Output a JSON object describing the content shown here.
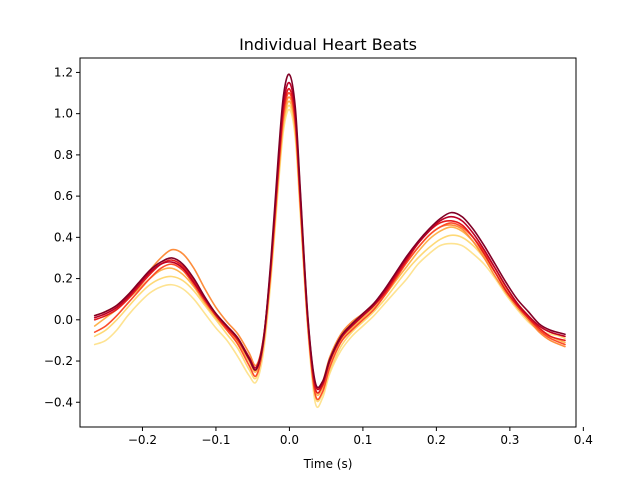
{
  "chart_data": {
    "type": "line",
    "title": "Individual Heart Beats",
    "xlabel": "Time (s)",
    "ylabel": "",
    "xlim": [
      -0.285,
      0.39
    ],
    "ylim": [
      -0.52,
      1.27
    ],
    "grid": false,
    "legend": "none",
    "x_ticks": [
      -0.2,
      -0.1,
      0.0,
      0.1,
      0.2,
      0.3,
      0.4
    ],
    "x_tick_labels": [
      "−0.2",
      "−0.1",
      "0.0",
      "0.1",
      "0.2",
      "0.3",
      "0.4"
    ],
    "y_ticks": [
      -0.4,
      -0.2,
      0.0,
      0.2,
      0.4,
      0.6,
      0.8,
      1.0,
      1.2
    ],
    "y_tick_labels": [
      "−0.4",
      "−0.2",
      "0.0",
      "0.2",
      "0.4",
      "0.6",
      "0.8",
      "1.0",
      "1.2"
    ],
    "x": [
      -0.265,
      -0.25,
      -0.235,
      -0.22,
      -0.205,
      -0.19,
      -0.175,
      -0.16,
      -0.145,
      -0.13,
      -0.115,
      -0.1,
      -0.085,
      -0.07,
      -0.055,
      -0.045,
      -0.035,
      -0.025,
      -0.015,
      -0.008,
      0.0,
      0.008,
      0.015,
      0.025,
      0.035,
      0.045,
      0.055,
      0.07,
      0.085,
      0.1,
      0.115,
      0.13,
      0.145,
      0.16,
      0.175,
      0.19,
      0.205,
      0.22,
      0.235,
      0.25,
      0.265,
      0.28,
      0.295,
      0.31,
      0.325,
      0.34,
      0.355,
      0.375
    ],
    "series": [
      {
        "color": "#fee391",
        "values": [
          -0.12,
          -0.1,
          -0.05,
          0.02,
          0.08,
          0.13,
          0.16,
          0.17,
          0.15,
          0.1,
          0.03,
          -0.04,
          -0.1,
          -0.18,
          -0.27,
          -0.3,
          -0.15,
          0.2,
          0.65,
          0.92,
          1.02,
          0.88,
          0.5,
          -0.05,
          -0.4,
          -0.38,
          -0.26,
          -0.15,
          -0.08,
          -0.03,
          0.02,
          0.08,
          0.14,
          0.2,
          0.27,
          0.32,
          0.36,
          0.37,
          0.36,
          0.32,
          0.27,
          0.2,
          0.12,
          0.05,
          -0.01,
          -0.05,
          -0.07,
          -0.08
        ]
      },
      {
        "color": "#fed976",
        "values": [
          -0.08,
          -0.05,
          0.0,
          0.06,
          0.12,
          0.17,
          0.2,
          0.21,
          0.19,
          0.14,
          0.07,
          0.0,
          -0.07,
          -0.14,
          -0.24,
          -0.28,
          -0.12,
          0.22,
          0.67,
          0.94,
          1.04,
          0.9,
          0.52,
          -0.03,
          -0.37,
          -0.36,
          -0.25,
          -0.13,
          -0.06,
          -0.01,
          0.04,
          0.1,
          0.17,
          0.24,
          0.3,
          0.35,
          0.39,
          0.41,
          0.4,
          0.36,
          0.3,
          0.23,
          0.15,
          0.08,
          0.02,
          -0.03,
          -0.06,
          -0.09
        ]
      },
      {
        "color": "#feb24c",
        "values": [
          -0.03,
          0.01,
          0.05,
          0.1,
          0.15,
          0.2,
          0.24,
          0.25,
          0.22,
          0.16,
          0.08,
          0.01,
          -0.05,
          -0.11,
          -0.2,
          -0.25,
          -0.1,
          0.24,
          0.69,
          0.96,
          1.06,
          0.92,
          0.54,
          -0.01,
          -0.34,
          -0.33,
          -0.21,
          -0.1,
          -0.04,
          0.01,
          0.06,
          0.12,
          0.19,
          0.26,
          0.33,
          0.39,
          0.43,
          0.45,
          0.43,
          0.38,
          0.31,
          0.23,
          0.15,
          0.08,
          0.02,
          -0.04,
          -0.08,
          -0.11
        ]
      },
      {
        "color": "#fd8d3c",
        "values": [
          0.02,
          0.04,
          0.07,
          0.12,
          0.18,
          0.24,
          0.3,
          0.34,
          0.32,
          0.25,
          0.15,
          0.06,
          -0.01,
          -0.07,
          -0.16,
          -0.22,
          -0.08,
          0.26,
          0.71,
          0.98,
          1.08,
          0.94,
          0.56,
          0.0,
          -0.31,
          -0.3,
          -0.18,
          -0.07,
          -0.01,
          0.03,
          0.08,
          0.14,
          0.21,
          0.28,
          0.35,
          0.41,
          0.45,
          0.46,
          0.44,
          0.38,
          0.3,
          0.21,
          0.13,
          0.06,
          0.0,
          -0.06,
          -0.1,
          -0.13
        ]
      },
      {
        "color": "#fc4e2a",
        "values": [
          -0.06,
          -0.03,
          0.02,
          0.08,
          0.14,
          0.2,
          0.25,
          0.27,
          0.24,
          0.17,
          0.09,
          0.02,
          -0.05,
          -0.12,
          -0.22,
          -0.27,
          -0.11,
          0.25,
          0.72,
          1.0,
          1.1,
          0.95,
          0.55,
          -0.02,
          -0.36,
          -0.35,
          -0.23,
          -0.11,
          -0.05,
          0.0,
          0.05,
          0.12,
          0.2,
          0.28,
          0.35,
          0.41,
          0.45,
          0.47,
          0.45,
          0.4,
          0.33,
          0.25,
          0.16,
          0.08,
          0.01,
          -0.05,
          -0.09,
          -0.12
        ]
      },
      {
        "color": "#e31a1c",
        "values": [
          0.0,
          0.02,
          0.05,
          0.1,
          0.16,
          0.22,
          0.27,
          0.29,
          0.26,
          0.19,
          0.1,
          0.02,
          -0.04,
          -0.1,
          -0.19,
          -0.24,
          -0.09,
          0.27,
          0.74,
          1.02,
          1.12,
          0.97,
          0.57,
          -0.01,
          -0.33,
          -0.32,
          -0.2,
          -0.09,
          -0.03,
          0.02,
          0.07,
          0.13,
          0.21,
          0.29,
          0.37,
          0.43,
          0.47,
          0.48,
          0.46,
          0.4,
          0.32,
          0.23,
          0.14,
          0.07,
          0.01,
          -0.04,
          -0.08,
          -0.1
        ]
      },
      {
        "color": "#bd0026",
        "values": [
          0.01,
          0.03,
          0.06,
          0.11,
          0.17,
          0.23,
          0.27,
          0.28,
          0.25,
          0.18,
          0.1,
          0.03,
          -0.03,
          -0.09,
          -0.18,
          -0.23,
          -0.08,
          0.28,
          0.76,
          1.05,
          1.15,
          1.0,
          0.6,
          0.01,
          -0.31,
          -0.31,
          -0.2,
          -0.09,
          -0.03,
          0.02,
          0.07,
          0.14,
          0.22,
          0.3,
          0.37,
          0.43,
          0.48,
          0.5,
          0.48,
          0.42,
          0.34,
          0.25,
          0.16,
          0.08,
          0.02,
          -0.03,
          -0.06,
          -0.08
        ]
      },
      {
        "color": "#800026",
        "values": [
          0.02,
          0.04,
          0.07,
          0.12,
          0.18,
          0.24,
          0.28,
          0.3,
          0.27,
          0.2,
          0.11,
          0.03,
          -0.03,
          -0.09,
          -0.19,
          -0.24,
          -0.09,
          0.3,
          0.8,
          1.09,
          1.19,
          1.03,
          0.62,
          0.02,
          -0.3,
          -0.3,
          -0.19,
          -0.08,
          -0.02,
          0.03,
          0.08,
          0.15,
          0.23,
          0.31,
          0.38,
          0.44,
          0.49,
          0.52,
          0.5,
          0.44,
          0.36,
          0.27,
          0.18,
          0.1,
          0.04,
          -0.02,
          -0.05,
          -0.07
        ]
      }
    ]
  }
}
